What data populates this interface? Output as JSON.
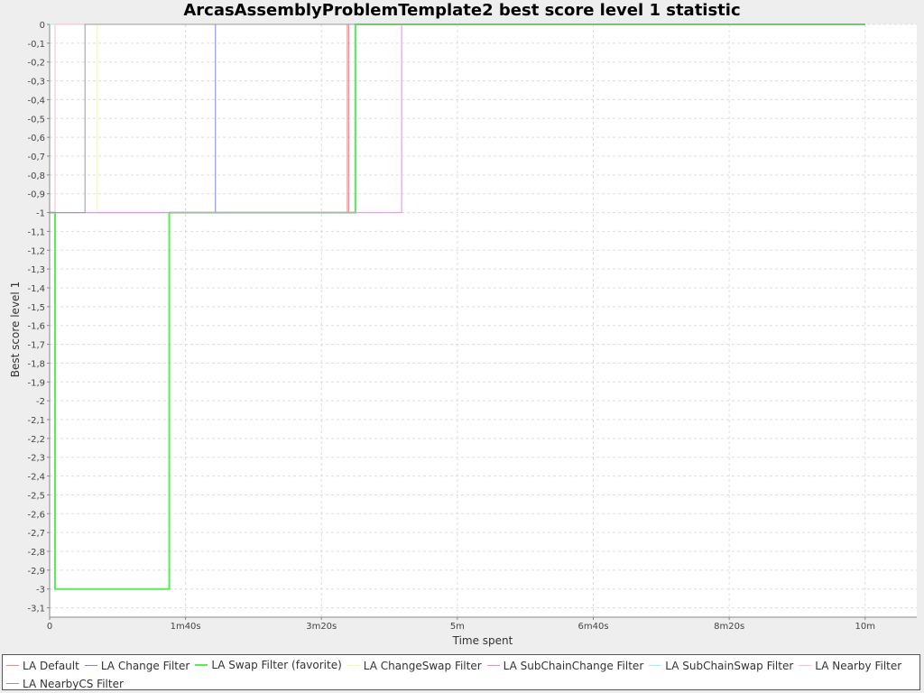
{
  "chart_data": {
    "type": "line",
    "title": "ArcasAssemblyProblemTemplate2 best score level 1 statistic",
    "xlabel": "Time spent",
    "ylabel": "Best score level 1",
    "xlim": [
      0,
      638
    ],
    "ylim": [
      -3.15,
      0
    ],
    "x_ticks": [
      {
        "value": 0,
        "label": "0"
      },
      {
        "value": 100,
        "label": "1m40s"
      },
      {
        "value": 200,
        "label": "3m20s"
      },
      {
        "value": 300,
        "label": "5m"
      },
      {
        "value": 400,
        "label": "6m40s"
      },
      {
        "value": 500,
        "label": "8m20s"
      },
      {
        "value": 600,
        "label": "10m"
      }
    ],
    "y_ticks": [
      {
        "value": 0,
        "label": "0"
      },
      {
        "value": -0.1,
        "label": "-0,1"
      },
      {
        "value": -0.2,
        "label": "-0,2"
      },
      {
        "value": -0.3,
        "label": "-0,3"
      },
      {
        "value": -0.4,
        "label": "-0,4"
      },
      {
        "value": -0.5,
        "label": "-0,5"
      },
      {
        "value": -0.6,
        "label": "-0,6"
      },
      {
        "value": -0.7,
        "label": "-0,7"
      },
      {
        "value": -0.8,
        "label": "-0,8"
      },
      {
        "value": -0.9,
        "label": "-0,9"
      },
      {
        "value": -1.0,
        "label": "-1"
      },
      {
        "value": -1.1,
        "label": "-1,1"
      },
      {
        "value": -1.2,
        "label": "-1,2"
      },
      {
        "value": -1.3,
        "label": "-1,3"
      },
      {
        "value": -1.4,
        "label": "-1,4"
      },
      {
        "value": -1.5,
        "label": "-1,5"
      },
      {
        "value": -1.6,
        "label": "-1,6"
      },
      {
        "value": -1.7,
        "label": "-1,7"
      },
      {
        "value": -1.8,
        "label": "-1,8"
      },
      {
        "value": -1.9,
        "label": "-1,9"
      },
      {
        "value": -2.0,
        "label": "-2"
      },
      {
        "value": -2.1,
        "label": "-2,1"
      },
      {
        "value": -2.2,
        "label": "-2,2"
      },
      {
        "value": -2.3,
        "label": "-2,3"
      },
      {
        "value": -2.4,
        "label": "-2,4"
      },
      {
        "value": -2.5,
        "label": "-2,5"
      },
      {
        "value": -2.6,
        "label": "-2,6"
      },
      {
        "value": -2.7,
        "label": "-2,7"
      },
      {
        "value": -2.8,
        "label": "-2,8"
      },
      {
        "value": -2.9,
        "label": "-2,9"
      },
      {
        "value": -3.0,
        "label": "-3"
      },
      {
        "value": -3.1,
        "label": "-3,1"
      }
    ],
    "grid": true,
    "legend_position": "bottom",
    "series": [
      {
        "name": "LA Default",
        "color": "#ff8080",
        "width": 1,
        "points": [
          [
            0,
            -1
          ],
          [
            4,
            -1
          ],
          [
            4,
            0
          ],
          [
            219,
            0
          ],
          [
            219,
            -1
          ],
          [
            220,
            -1
          ],
          [
            220,
            0
          ],
          [
            600,
            0
          ]
        ]
      },
      {
        "name": "LA Change Filter",
        "color": "#8080ff",
        "width": 1,
        "points": [
          [
            0,
            -1
          ],
          [
            122,
            -1
          ],
          [
            122,
            0
          ],
          [
            600,
            0
          ]
        ]
      },
      {
        "name": "LA Swap Filter (favorite)",
        "color": "#55ee55",
        "width": 2,
        "points": [
          [
            0,
            -1
          ],
          [
            4,
            -1
          ],
          [
            4,
            -3
          ],
          [
            88,
            -3
          ],
          [
            88,
            -1
          ],
          [
            225,
            -1
          ],
          [
            225,
            0
          ],
          [
            600,
            0
          ]
        ]
      },
      {
        "name": "LA ChangeSwap Filter",
        "color": "#eeff99",
        "width": 1,
        "points": [
          [
            0,
            -1
          ],
          [
            35,
            -1
          ],
          [
            35,
            0
          ],
          [
            600,
            0
          ]
        ]
      },
      {
        "name": "LA SubChainChange Filter",
        "color": "#ee88ee",
        "width": 1,
        "points": [
          [
            0,
            -1
          ],
          [
            259,
            -1
          ],
          [
            259,
            0
          ],
          [
            600,
            0
          ]
        ]
      },
      {
        "name": "LA SubChainSwap Filter",
        "color": "#88ffff",
        "width": 1,
        "points": [
          [
            0,
            0
          ],
          [
            600,
            0
          ]
        ]
      },
      {
        "name": "LA Nearby Filter",
        "color": "#ffbbcc",
        "width": 1,
        "points": [
          [
            0,
            -1
          ],
          [
            4,
            -1
          ],
          [
            4,
            0
          ],
          [
            600,
            0
          ]
        ]
      },
      {
        "name": "LA NearbyCS Filter",
        "color": "#999999",
        "width": 1,
        "points": [
          [
            0,
            -1
          ],
          [
            26,
            -1
          ],
          [
            26,
            0
          ],
          [
            600,
            0
          ]
        ]
      }
    ]
  }
}
